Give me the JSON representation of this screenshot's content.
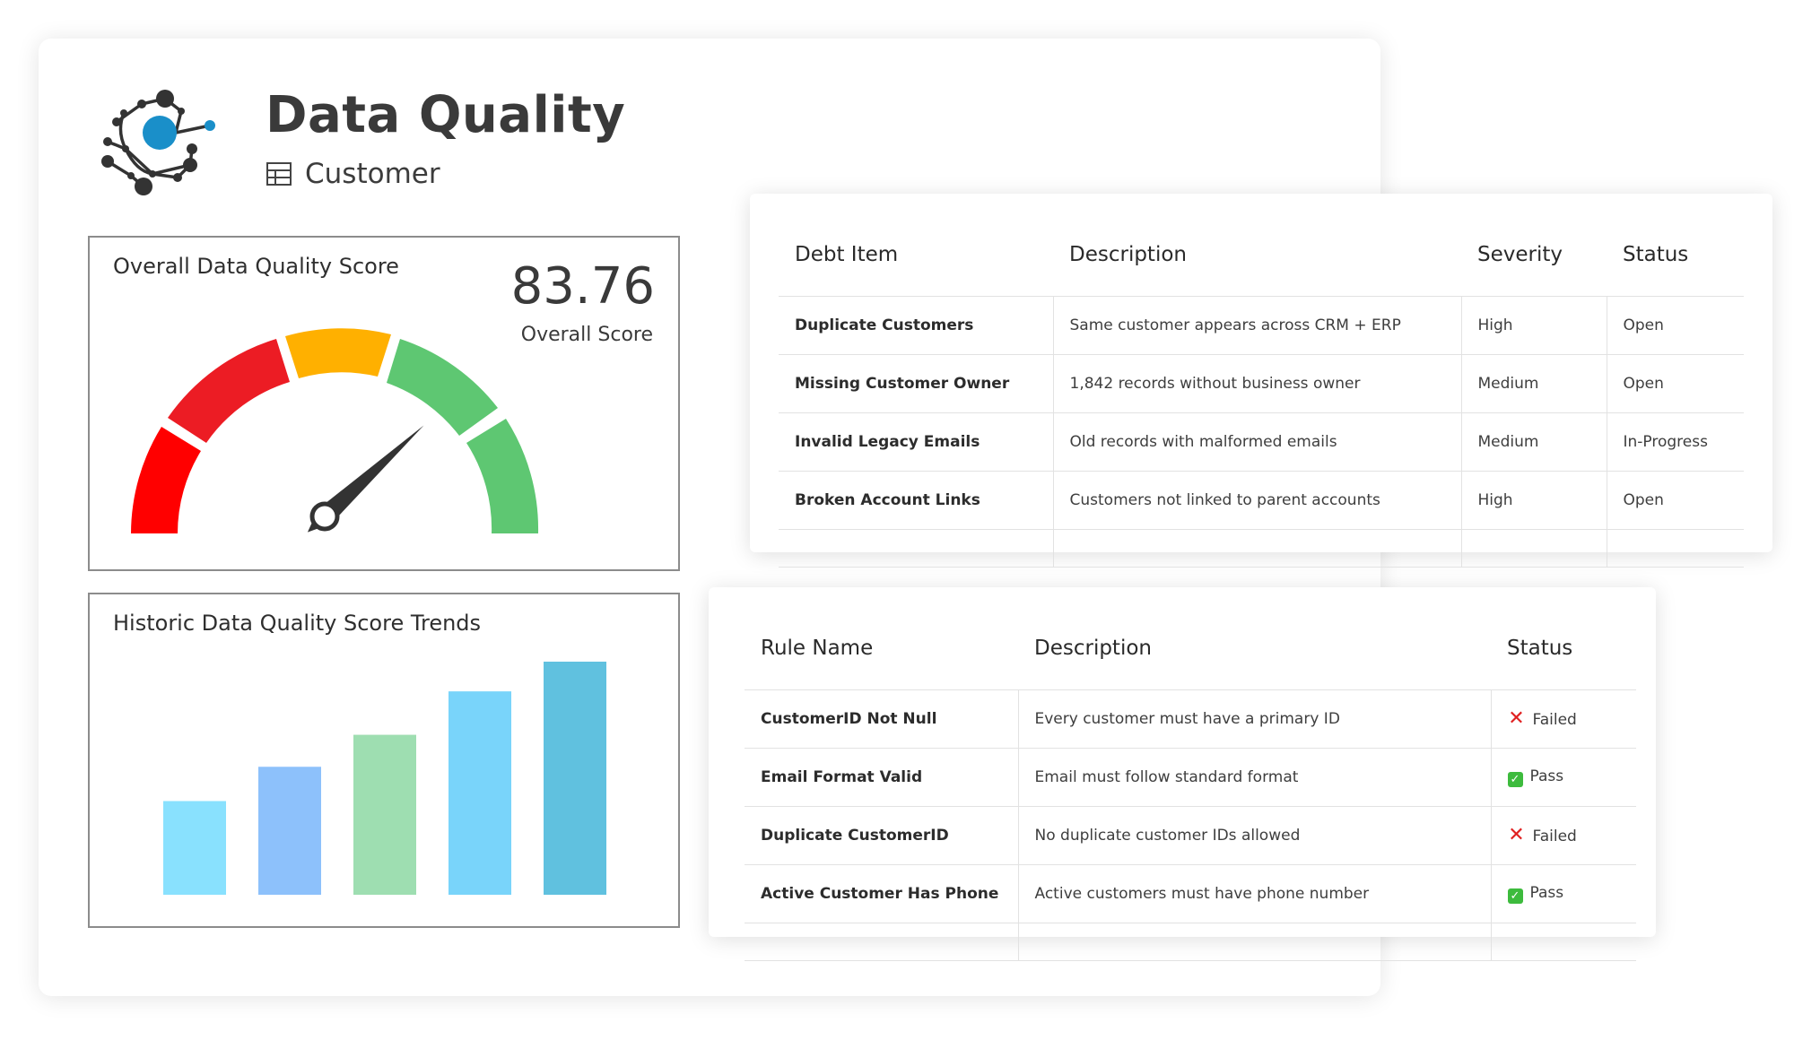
{
  "header": {
    "title": "Data Quality",
    "entity": "Customer",
    "logo_icon": "network-logo-icon",
    "entity_icon": "table-icon"
  },
  "score_panel": {
    "title": "Overall Data Quality Score",
    "value": "83.76",
    "caption": "Overall Score",
    "gauge_score": 83.76,
    "gauge_colors": [
      "#ff0000",
      "#ec1c24",
      "#ffb000",
      "#5ec772",
      "#5ec772"
    ]
  },
  "trend_panel": {
    "title": "Historic Data Quality Score Trends"
  },
  "chart_data": {
    "type": "bar",
    "title": "Historic Data Quality Score Trends",
    "categories": [
      "",
      "",
      "",
      "",
      ""
    ],
    "values": [
      41,
      56,
      70,
      89,
      102
    ],
    "ylim": [
      0,
      102
    ],
    "grid": false,
    "colors": [
      "#89e1fe",
      "#8dc1fb",
      "#9edeb1",
      "#79d4fa",
      "#60c1df"
    ]
  },
  "debt_table": {
    "columns": [
      "Debt Item",
      "Description",
      "Severity",
      "Status"
    ],
    "rows": [
      {
        "item": "Duplicate Customers",
        "description": "Same customer appears across CRM + ERP",
        "severity": "High",
        "status": "Open"
      },
      {
        "item": "Missing Customer Owner",
        "description": "1,842 records without business owner",
        "severity": "Medium",
        "status": "Open"
      },
      {
        "item": "Invalid Legacy Emails",
        "description": "Old records with malformed emails",
        "severity": "Medium",
        "status": "In-Progress"
      },
      {
        "item": "Broken Account Links",
        "description": "Customers not linked to parent accounts",
        "severity": "High",
        "status": "Open"
      }
    ]
  },
  "rules_table": {
    "columns": [
      "Rule Name",
      "Description",
      "Status"
    ],
    "rows": [
      {
        "name": "CustomerID Not Null",
        "description": "Every customer must have a primary ID",
        "status": "Failed",
        "icon": "x-mark-icon"
      },
      {
        "name": "Email Format Valid",
        "description": "Email must follow standard format",
        "status": "Pass",
        "icon": "check-box-icon"
      },
      {
        "name": "Duplicate CustomerID",
        "description": "No duplicate customer IDs allowed",
        "status": "Failed",
        "icon": "x-mark-icon"
      },
      {
        "name": "Active Customer Has Phone",
        "description": "Active customers must have phone number",
        "status": "Pass",
        "icon": "check-box-icon"
      }
    ]
  }
}
